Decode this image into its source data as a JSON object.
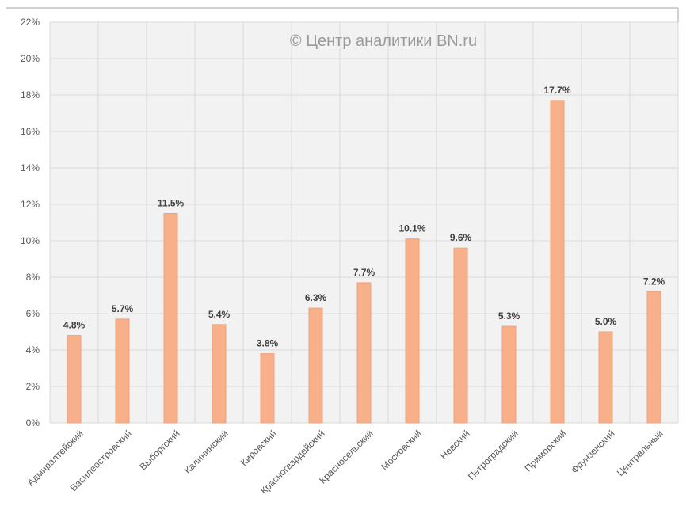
{
  "watermark": "© Центр аналитики BN.ru",
  "colors": {
    "bar": "#F7B08A",
    "bar_stroke": "#EFA27A",
    "plot_bg": "#F2F2F2",
    "grid": "#D9D9D9",
    "frame": "#A6A6A6"
  },
  "chart_data": {
    "type": "bar",
    "categories": [
      "Адмиралтейский",
      "Василеостровский",
      "Выборгский",
      "Калининский",
      "Кировский",
      "Красногвардейский",
      "Красносельский",
      "Московский",
      "Невский",
      "Петроградский",
      "Приморский",
      "Фрунзенский",
      "Центральный"
    ],
    "values": [
      4.8,
      5.7,
      11.5,
      5.4,
      3.8,
      6.3,
      7.7,
      10.1,
      9.6,
      5.3,
      17.7,
      5.0,
      7.2
    ],
    "data_labels": [
      "4.8%",
      "5.7%",
      "11.5%",
      "5.4%",
      "3.8%",
      "6.3%",
      "7.7%",
      "10.1%",
      "9.6%",
      "5.3%",
      "17.7%",
      "5.0%",
      "7.2%"
    ],
    "ylim": [
      0,
      22
    ],
    "yticks": [
      0,
      2,
      4,
      6,
      8,
      10,
      12,
      14,
      16,
      18,
      20,
      22
    ],
    "ytick_labels": [
      "0%",
      "2%",
      "4%",
      "6%",
      "8%",
      "10%",
      "12%",
      "14%",
      "16%",
      "18%",
      "20%",
      "22%"
    ],
    "grid": true,
    "legend": "none"
  }
}
